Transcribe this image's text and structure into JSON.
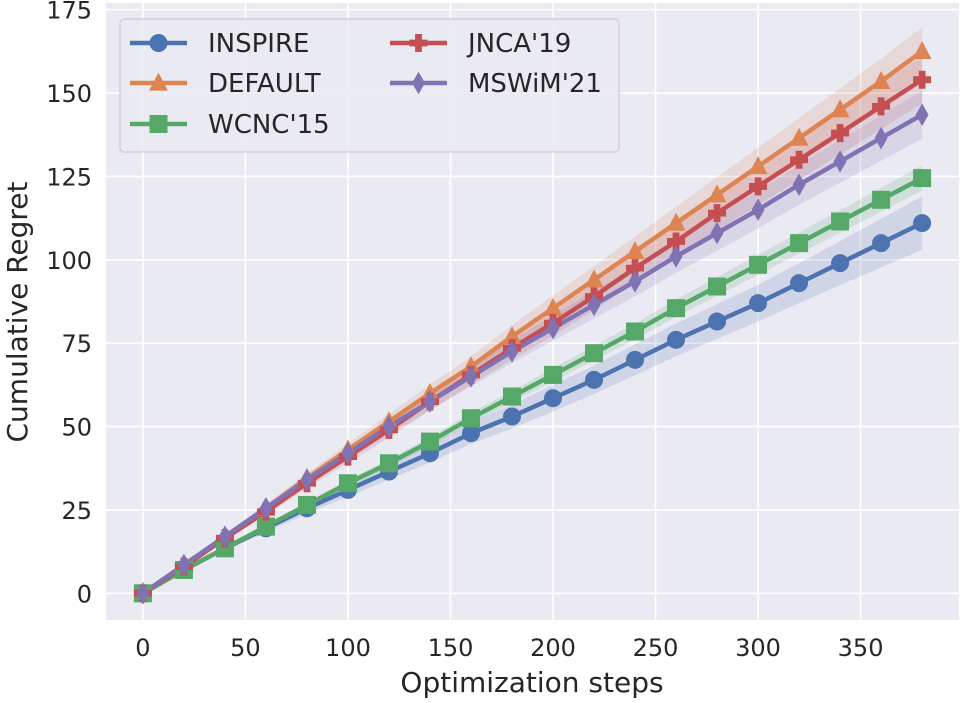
{
  "chart_data": {
    "type": "line",
    "xlabel": "Optimization steps",
    "ylabel": "Cumulative Regret",
    "xlim": [
      -18,
      398
    ],
    "ylim": [
      -8,
      177
    ],
    "xticks": [
      0,
      50,
      100,
      150,
      200,
      250,
      300,
      350
    ],
    "yticks": [
      0,
      25,
      50,
      75,
      100,
      125,
      150,
      175
    ],
    "x": [
      0,
      20,
      40,
      60,
      80,
      100,
      120,
      140,
      160,
      180,
      200,
      220,
      240,
      260,
      280,
      300,
      320,
      340,
      360,
      380
    ],
    "grid": true,
    "background": "#eaeaf2",
    "legend": {
      "placement": "top-left",
      "columns": 2
    },
    "series": [
      {
        "name": "INSPIRE",
        "color": "#4c72b0",
        "marker": "circle",
        "values": [
          0,
          7,
          13.5,
          19.5,
          25.5,
          31,
          36.5,
          42,
          48,
          53,
          58.5,
          64,
          70,
          76,
          81.5,
          87,
          93,
          99,
          105,
          111
        ],
        "band": [
          0,
          0.4,
          0.8,
          1.2,
          1.6,
          2,
          2.4,
          2.8,
          3.2,
          3.6,
          4,
          4.3,
          4.6,
          4.9,
          5.2,
          5.5,
          6,
          6.6,
          7.3,
          8
        ]
      },
      {
        "name": "DEFAULT",
        "color": "#dd8452",
        "marker": "triangle",
        "values": [
          0,
          8.5,
          17,
          25.5,
          34.5,
          43,
          51.5,
          60,
          68,
          77,
          85.5,
          94,
          102.5,
          111,
          119.5,
          128,
          136.5,
          145,
          153.5,
          162.5
        ],
        "band": [
          0,
          0.4,
          0.8,
          1.1,
          1.5,
          1.9,
          2.3,
          2.6,
          3,
          3.4,
          3.8,
          4.1,
          4.5,
          4.9,
          5.3,
          5.6,
          6,
          6.4,
          6.8,
          7.2
        ]
      },
      {
        "name": "WCNC'15",
        "color": "#55a868",
        "marker": "square",
        "values": [
          0,
          7,
          13.5,
          20,
          26.5,
          33,
          39,
          45.5,
          52.5,
          59,
          65.5,
          72,
          78.5,
          85.5,
          92,
          98.5,
          105,
          111.5,
          118,
          124.5
        ],
        "band": [
          0,
          0.2,
          0.4,
          0.6,
          0.8,
          1,
          1.2,
          1.4,
          1.6,
          1.8,
          2,
          2.2,
          2.4,
          2.6,
          2.8,
          3,
          3.2,
          3.4,
          3.6,
          3.8
        ]
      },
      {
        "name": "JNCA'19",
        "color": "#c44e52",
        "marker": "plus",
        "values": [
          0,
          8,
          16.5,
          24.5,
          33,
          41,
          49,
          57.5,
          65.5,
          73.5,
          81,
          89,
          97.5,
          105.5,
          114,
          122,
          130,
          138,
          146,
          154
        ],
        "band": [
          0,
          0.4,
          0.8,
          1.1,
          1.5,
          1.9,
          2.3,
          2.6,
          3,
          3.4,
          3.8,
          4.1,
          4.5,
          4.9,
          5.3,
          5.6,
          6,
          6.4,
          6.8,
          7.2
        ]
      },
      {
        "name": "MSWiM'21",
        "color": "#8172b3",
        "marker": "diamond",
        "values": [
          0,
          8.5,
          17,
          25.5,
          34,
          42,
          50,
          57.5,
          65,
          72.5,
          79.5,
          86.5,
          93.5,
          101,
          108,
          115,
          122.5,
          129.5,
          136.5,
          143.5
        ],
        "band": [
          0,
          0.4,
          0.8,
          1.1,
          1.5,
          1.9,
          2.3,
          2.6,
          3,
          3.4,
          3.8,
          4.1,
          4.5,
          4.9,
          5.3,
          5.6,
          6,
          6.4,
          6.8,
          7.2
        ]
      }
    ]
  }
}
